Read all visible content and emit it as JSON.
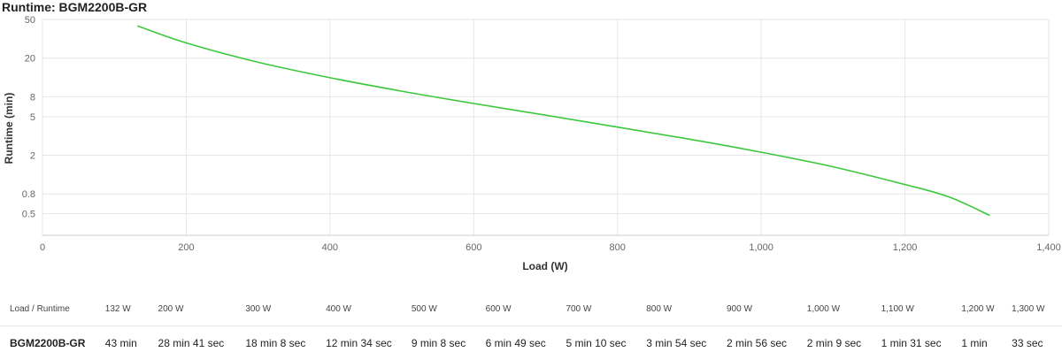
{
  "title": "Runtime: BGM2200B-GR",
  "chart_data": {
    "type": "line",
    "title": "Runtime: BGM2200B-GR",
    "xlabel": "Load (W)",
    "ylabel": "Runtime (min)",
    "xlim": [
      0,
      1400
    ],
    "ylim": [
      0.3,
      50
    ],
    "yscale": "log",
    "x_ticks": [
      0,
      200,
      400,
      600,
      800,
      1000,
      1200,
      1400
    ],
    "x_tick_labels": [
      "0",
      "200",
      "400",
      "600",
      "800",
      "1,000",
      "1,200",
      "1,400"
    ],
    "y_ticks": [
      0.5,
      0.8,
      2,
      5,
      8,
      20,
      50
    ],
    "y_tick_labels": [
      "0.5",
      "0.8",
      "2",
      "5",
      "8",
      "20",
      "50"
    ],
    "grid": true,
    "line_color": "#3cc83c",
    "series": [
      {
        "x": [
          132,
          200,
          300,
          400,
          500,
          600,
          700,
          800,
          900,
          1000,
          1100,
          1200,
          1260,
          1318
        ],
        "values": [
          43,
          28.68,
          18.13,
          12.57,
          9.13,
          6.82,
          5.17,
          3.9,
          2.93,
          2.15,
          1.52,
          1.0,
          0.75,
          0.48
        ]
      }
    ]
  },
  "table": {
    "header_label": "Load / Runtime",
    "loads": [
      "132 W",
      "200 W",
      "300 W",
      "400 W",
      "500 W",
      "600 W",
      "700 W",
      "800 W",
      "900 W",
      "1,000 W",
      "1,100 W",
      "1,200 W",
      "1,300 W"
    ],
    "model": "BGM2200B-GR",
    "runtimes": [
      "43 min",
      "28 min 41 sec",
      "18 min 8 sec",
      "12 min 34 sec",
      "9 min 8 sec",
      "6 min 49 sec",
      "5 min 10 sec",
      "3 min 54 sec",
      "2 min 56 sec",
      "2 min 9 sec",
      "1 min 31 sec",
      "1 min",
      "33 sec"
    ]
  }
}
